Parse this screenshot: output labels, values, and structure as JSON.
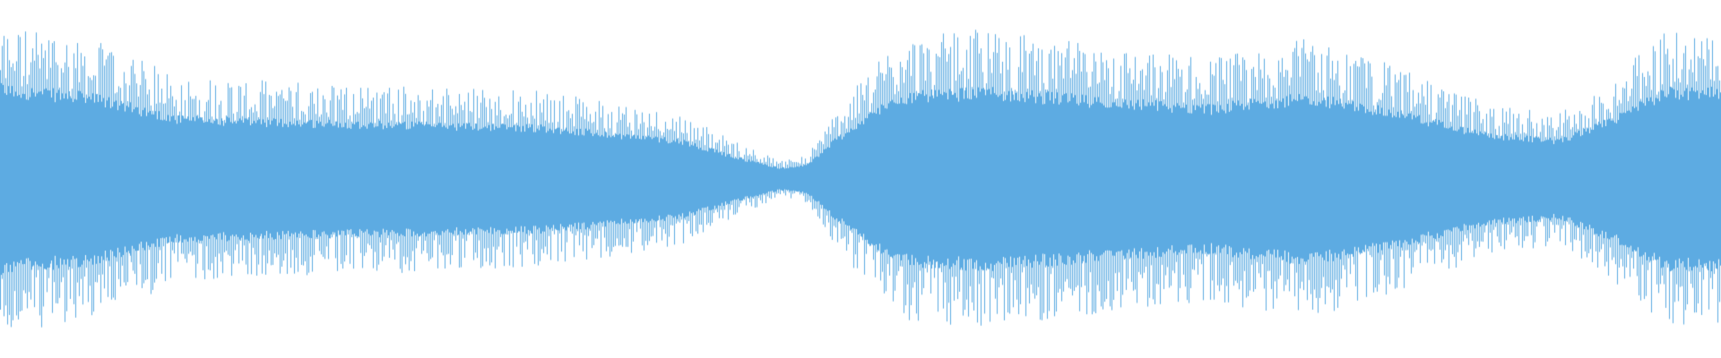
{
  "waveform": {
    "color": "#5dabe2",
    "background": "#ffffff"
  }
}
